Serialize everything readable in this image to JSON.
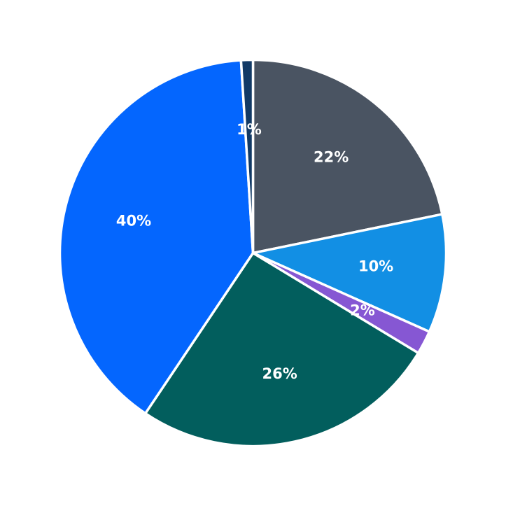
{
  "chart_data": {
    "type": "pie",
    "start_angle_deg": 90,
    "direction": "clockwise",
    "slices": [
      {
        "label": "22%",
        "value": 22,
        "color": "#4a5462"
      },
      {
        "label": "10%",
        "value": 10,
        "color": "#128fe4"
      },
      {
        "label": "2%",
        "value": 2,
        "color": "#8657d3"
      },
      {
        "label": "26%",
        "value": 26,
        "color": "#025e5d"
      },
      {
        "label": "40%",
        "value": 40,
        "color": "#0466fe"
      },
      {
        "label": "1%",
        "value": 1,
        "color": "#123a66"
      }
    ]
  }
}
